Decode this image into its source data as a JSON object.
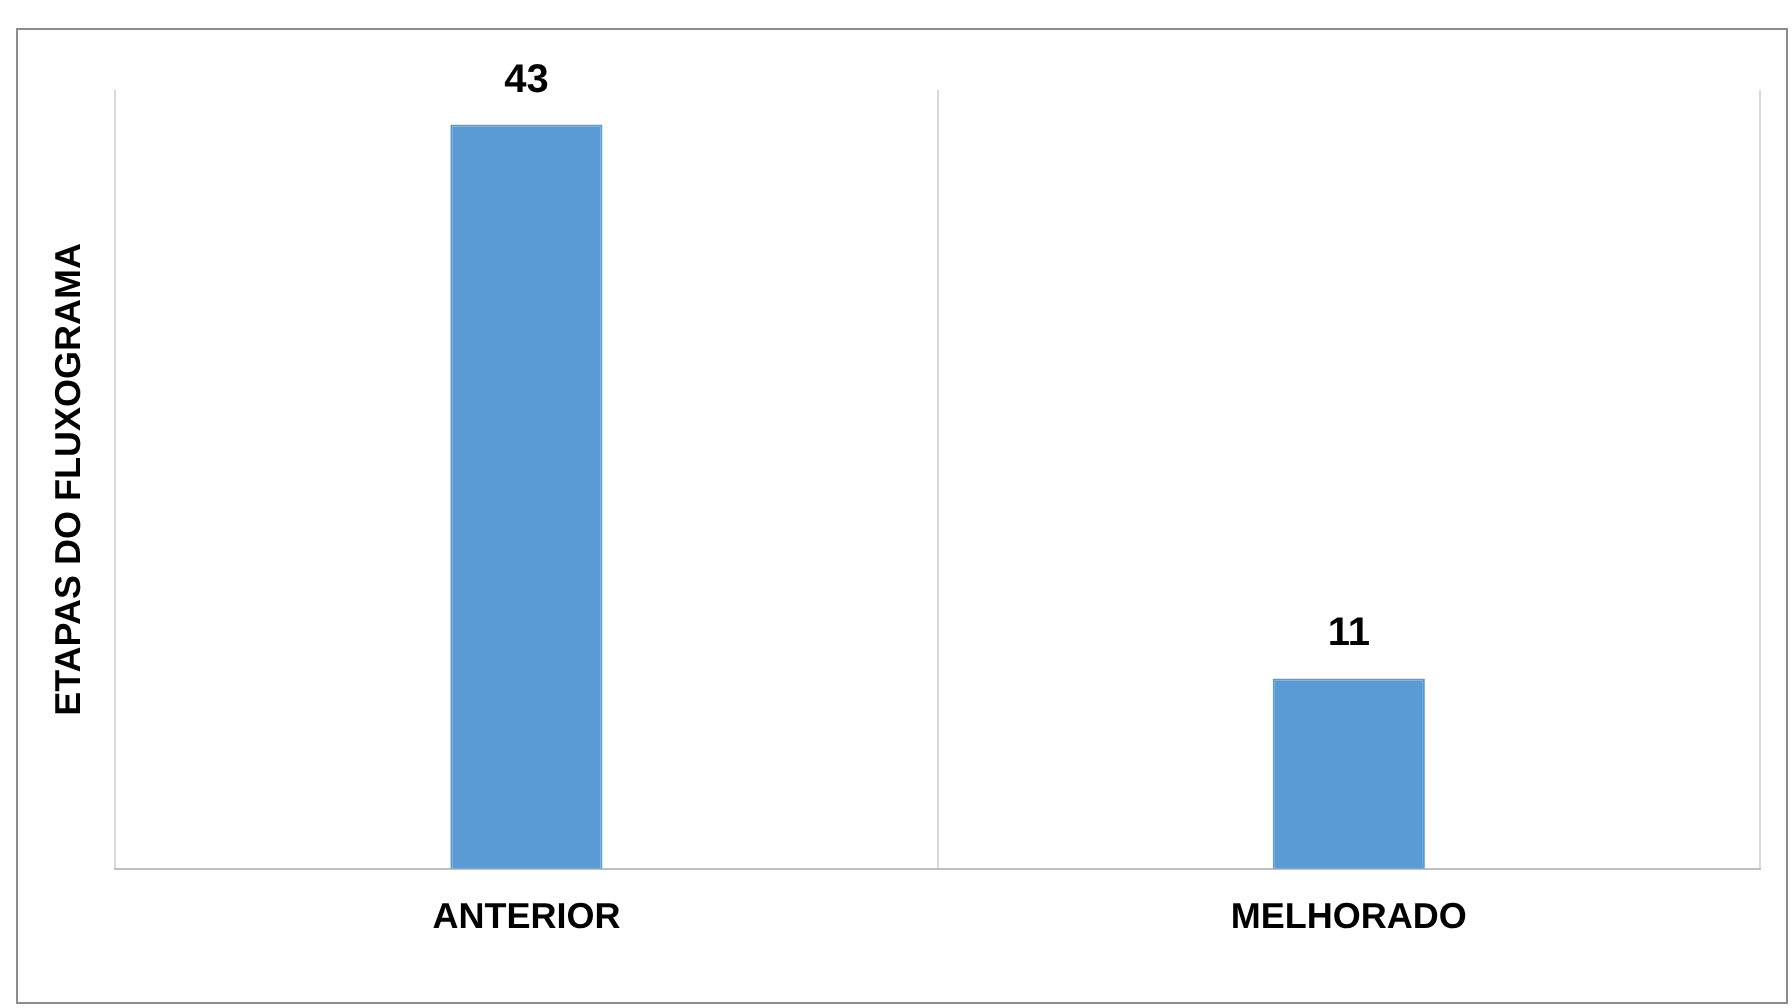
{
  "chart_data": {
    "type": "bar",
    "ylabel": "ETAPAS DO FLUXOGRAMA",
    "categories": [
      "ANTERIOR",
      "MELHORADO"
    ],
    "values": [
      43,
      11
    ],
    "color": "#5b9bd5",
    "data_labels": true,
    "grid": "x",
    "legend": false
  }
}
